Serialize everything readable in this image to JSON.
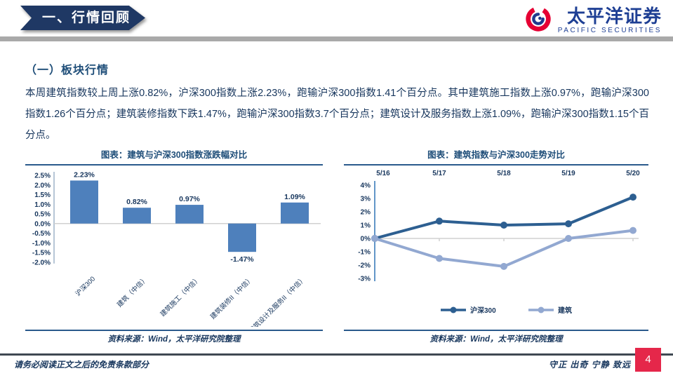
{
  "header": {
    "banner": "一、行情回顾",
    "logo_cn": "太平洋证券",
    "logo_en": "PACIFIC SECURITIES"
  },
  "section": {
    "subtitle": "（一）板块行情",
    "paragraph": "本周建筑指数较上周上涨0.82%，沪深300指数上涨2.23%，跑输沪深300指数1.41个百分点。其中建筑施工指数上涨0.97%，跑输沪深300指数1.26个百分点；建筑装修指数下跌1.47%，跑输沪深300指数3.7个百分点；建筑设计及服务指数上涨1.09%，跑输沪深300指数1.15个百分点。"
  },
  "charts": {
    "left": {
      "source": "资料来源：Wind，太平洋研究院整理"
    },
    "right": {
      "source": "资料来源：Wind，太平洋研究院整理"
    }
  },
  "chart_data": [
    {
      "type": "bar",
      "title": "图表：建筑与沪深300指数涨跌幅对比",
      "categories": [
        "沪深300",
        "建筑（中信）",
        "建筑施工（中信）",
        "建筑装修II（中信）",
        "建筑设计及服务II（中信）"
      ],
      "values": [
        2.23,
        0.82,
        0.97,
        -1.47,
        1.09
      ],
      "labels": [
        "2.23%",
        "0.82%",
        "0.97%",
        "-1.47%",
        "1.09%"
      ],
      "ylim": [
        -2.0,
        2.5
      ],
      "ytick_step": 0.5,
      "yticks": [
        "2.5%",
        "2.0%",
        "1.5%",
        "1.0%",
        "0.5%",
        "0.0%",
        "-0.5%",
        "-1.0%",
        "-1.5%",
        "-2.0%"
      ],
      "bar_color": "#4e80bc",
      "grid": false,
      "legend_position": "none"
    },
    {
      "type": "line",
      "title": "图表：建筑指数与沪深300走势对比",
      "x": [
        "5/16",
        "5/17",
        "5/18",
        "5/19",
        "5/20"
      ],
      "series": [
        {
          "name": "沪深300",
          "values": [
            0,
            1.3,
            1.0,
            1.1,
            3.1
          ],
          "color": "#2d5f91"
        },
        {
          "name": "建筑",
          "values": [
            0,
            -1.5,
            -2.1,
            0.0,
            0.6
          ],
          "color": "#92a8d1"
        }
      ],
      "ylim": [
        -3,
        4
      ],
      "ytick_step": 1,
      "yticks": [
        "4%",
        "3%",
        "2%",
        "1%",
        "0%",
        "-1%",
        "-2%",
        "-3%"
      ],
      "grid": false,
      "legend_position": "bottom"
    }
  ],
  "footer": {
    "left": "请务必阅读正文之后的免责条款部分",
    "right": "守正 出奇 宁静 致远",
    "page": "4"
  }
}
